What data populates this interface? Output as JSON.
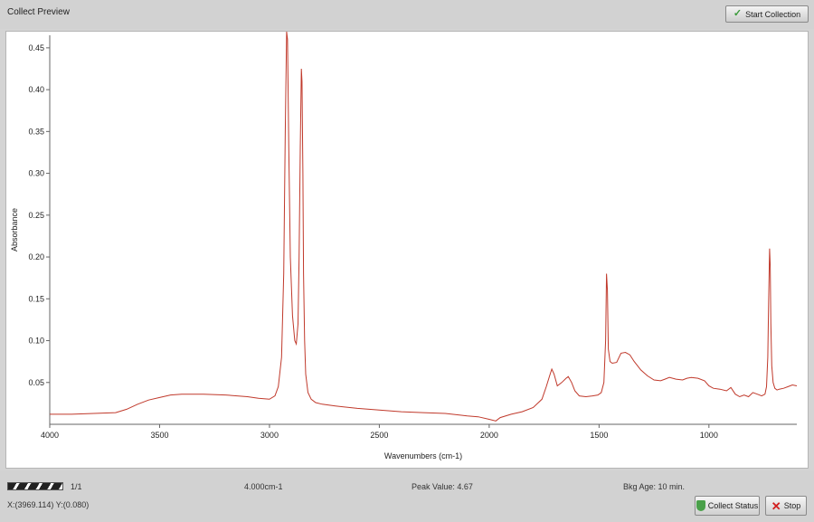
{
  "window": {
    "title": "Collect Preview",
    "start_button": "Start Collection"
  },
  "status": {
    "scan_count": "1/1",
    "resolution": "4.000cm-1",
    "peak_value": "Peak Value: 4.67",
    "bkg_age": "Bkg Age: 10 min.",
    "cursor": "X:(3969.114) Y:(0.080)",
    "collect_status_button": "Collect Status",
    "stop_button": "Stop"
  },
  "progress": 1.0,
  "icons": {
    "start": "check-icon",
    "collect_status": "shield-icon",
    "stop": "x-icon"
  },
  "colors": {
    "trace": "#c0392b"
  },
  "chart_data": {
    "type": "line",
    "xlabel": "Wavenumbers (cm-1)",
    "ylabel": "Absorbance",
    "xlim": [
      4000,
      600
    ],
    "ylim": [
      0,
      0.465
    ],
    "xticks": [
      4000,
      3500,
      3000,
      2500,
      2000,
      1500,
      1000
    ],
    "yticks": [
      0.05,
      0.1,
      0.15,
      0.2,
      0.25,
      0.3,
      0.35,
      0.4,
      0.45
    ],
    "ytick_labels": [
      "0.05",
      "0.10",
      "0.15",
      "0.20",
      "0.25",
      "0.30",
      "0.35",
      "0.40",
      "0.45"
    ],
    "series": [
      {
        "x": [
          4000,
          3900,
          3800,
          3700,
          3650,
          3600,
          3550,
          3500,
          3450,
          3400,
          3300,
          3200,
          3100,
          3050,
          3000,
          2975,
          2960,
          2945,
          2935,
          2928,
          2922,
          2918,
          2912,
          2905,
          2895,
          2885,
          2878,
          2870,
          2865,
          2860,
          2855,
          2852,
          2848,
          2845,
          2840,
          2835,
          2825,
          2810,
          2790,
          2760,
          2700,
          2600,
          2500,
          2400,
          2300,
          2200,
          2100,
          2050,
          2000,
          1970,
          1950,
          1900,
          1850,
          1800,
          1760,
          1740,
          1725,
          1715,
          1705,
          1690,
          1670,
          1650,
          1640,
          1625,
          1610,
          1590,
          1560,
          1530,
          1505,
          1490,
          1478,
          1470,
          1466,
          1462,
          1458,
          1450,
          1440,
          1420,
          1400,
          1380,
          1360,
          1340,
          1310,
          1280,
          1250,
          1220,
          1200,
          1180,
          1150,
          1120,
          1100,
          1080,
          1050,
          1020,
          1000,
          980,
          950,
          920,
          900,
          880,
          860,
          840,
          820,
          800,
          780,
          760,
          745,
          738,
          732,
          728,
          724,
          721,
          718,
          714,
          708,
          700,
          690,
          680,
          660,
          640,
          620,
          600
        ],
        "y": [
          0.012,
          0.012,
          0.013,
          0.014,
          0.018,
          0.024,
          0.029,
          0.032,
          0.035,
          0.036,
          0.036,
          0.035,
          0.033,
          0.031,
          0.03,
          0.034,
          0.045,
          0.08,
          0.18,
          0.35,
          0.47,
          0.46,
          0.33,
          0.2,
          0.13,
          0.1,
          0.096,
          0.12,
          0.2,
          0.33,
          0.425,
          0.41,
          0.3,
          0.18,
          0.1,
          0.06,
          0.038,
          0.03,
          0.026,
          0.024,
          0.022,
          0.019,
          0.017,
          0.015,
          0.014,
          0.013,
          0.01,
          0.009,
          0.006,
          0.004,
          0.008,
          0.012,
          0.015,
          0.02,
          0.03,
          0.045,
          0.058,
          0.066,
          0.06,
          0.046,
          0.05,
          0.055,
          0.057,
          0.05,
          0.04,
          0.034,
          0.033,
          0.034,
          0.035,
          0.038,
          0.05,
          0.1,
          0.18,
          0.16,
          0.09,
          0.075,
          0.073,
          0.074,
          0.085,
          0.086,
          0.083,
          0.075,
          0.065,
          0.058,
          0.053,
          0.052,
          0.054,
          0.056,
          0.054,
          0.053,
          0.055,
          0.056,
          0.055,
          0.052,
          0.046,
          0.043,
          0.042,
          0.04,
          0.044,
          0.036,
          0.033,
          0.035,
          0.033,
          0.038,
          0.036,
          0.034,
          0.036,
          0.045,
          0.08,
          0.15,
          0.21,
          0.19,
          0.12,
          0.07,
          0.05,
          0.043,
          0.041,
          0.042,
          0.043,
          0.045,
          0.047,
          0.046
        ]
      }
    ]
  }
}
